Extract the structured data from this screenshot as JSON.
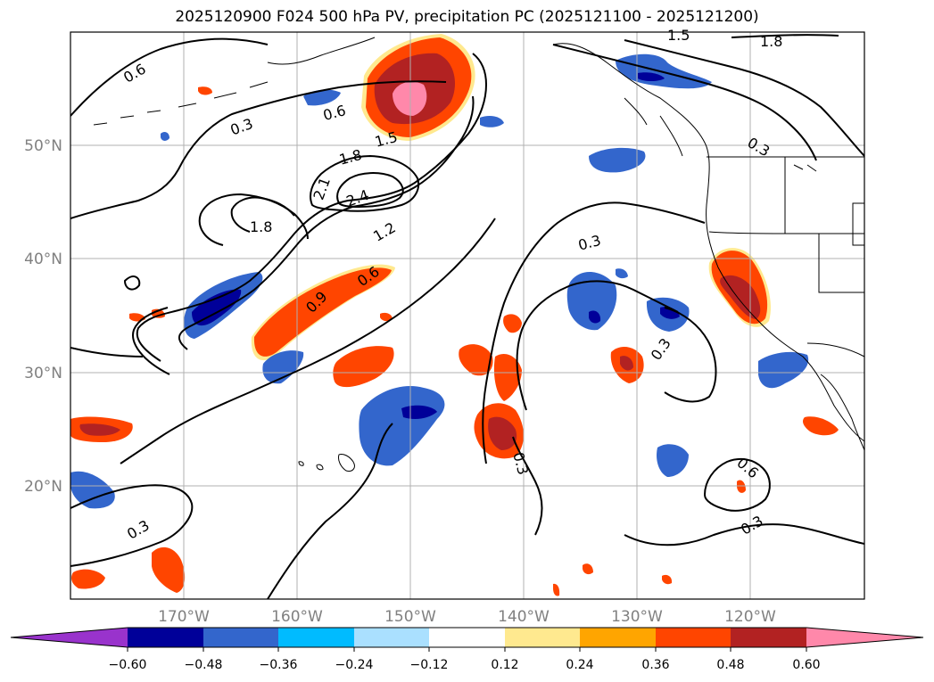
{
  "title": "2025120900 F024 500 hPa PV, precipitation PC (2025121100 - 2025121200)",
  "latitudes": [
    {
      "value": 50,
      "label": "50°N"
    },
    {
      "value": 40,
      "label": "40°N"
    },
    {
      "value": 30,
      "label": "30°N"
    },
    {
      "value": 20,
      "label": "20°N"
    }
  ],
  "longitudes": [
    {
      "value": -170,
      "label": "170°W"
    },
    {
      "value": -160,
      "label": "160°W"
    },
    {
      "value": -150,
      "label": "150°W"
    },
    {
      "value": -140,
      "label": "140°W"
    },
    {
      "value": -130,
      "label": "130°W"
    },
    {
      "value": -120,
      "label": "120°W"
    }
  ],
  "colorbar": {
    "colors": [
      "#9933cc",
      "#000099",
      "#3366cc",
      "#00bbff",
      "#aae0ff",
      "#ffffff",
      "#ffe98f",
      "#ffa500",
      "#ff4500",
      "#b22222",
      "#ff88aa"
    ],
    "ticks": [
      "−0.60",
      "−0.48",
      "−0.36",
      "−0.24",
      "−0.12",
      "0.12",
      "0.24",
      "0.36",
      "0.48",
      "0.60"
    ]
  },
  "contour_labels": [
    "0.6",
    "0.3",
    "0.6",
    "1.5",
    "1.8",
    "2.1",
    "2.4",
    "1.8",
    "1.2",
    "0.6",
    "0.9",
    "0.3",
    "1.5",
    "1.8",
    "0.3",
    "0.3",
    "0.3",
    "0.6",
    "0.3",
    "0.3"
  ]
}
